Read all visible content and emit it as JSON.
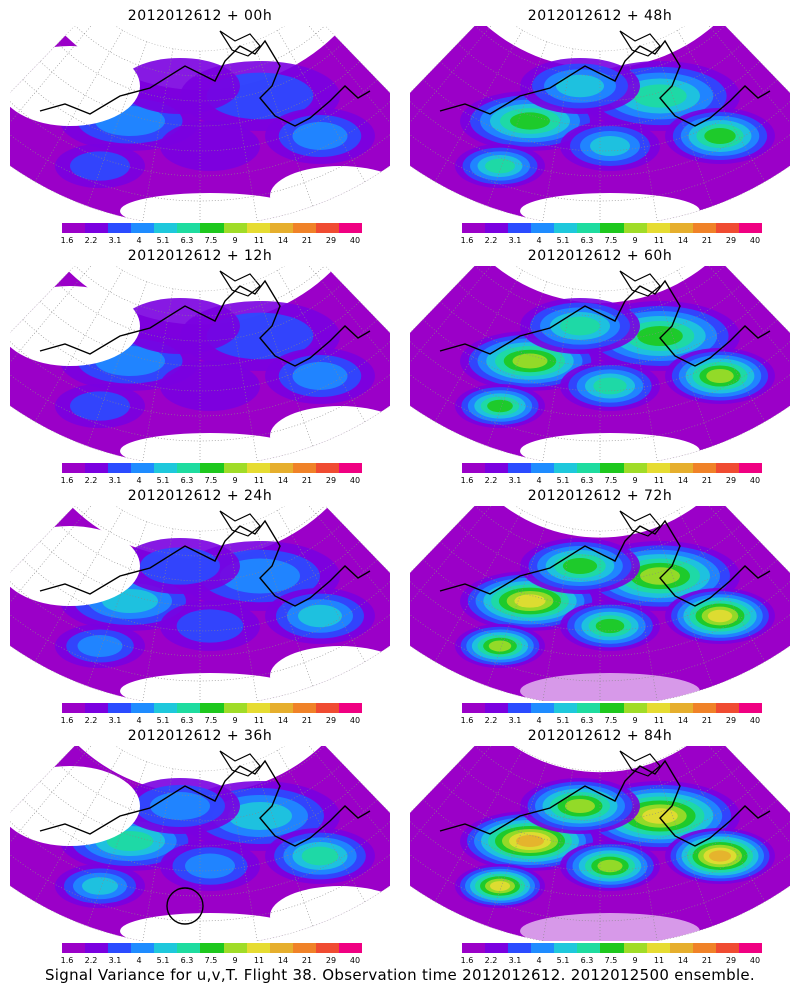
{
  "panels": [
    {
      "title": "2012012612 + 00h",
      "col": 0,
      "row": 0,
      "level": 0
    },
    {
      "title": "2012012612 + 48h",
      "col": 1,
      "row": 0,
      "level": 4
    },
    {
      "title": "2012012612 + 12h",
      "col": 0,
      "row": 1,
      "level": 1
    },
    {
      "title": "2012012612 + 60h",
      "col": 1,
      "row": 1,
      "level": 5
    },
    {
      "title": "2012012612 + 24h",
      "col": 0,
      "row": 2,
      "level": 2
    },
    {
      "title": "2012012612 + 72h",
      "col": 1,
      "row": 2,
      "level": 6
    },
    {
      "title": "2012012612 + 36h",
      "col": 0,
      "row": 3,
      "level": 3,
      "marker": true
    },
    {
      "title": "2012012612 + 84h",
      "col": 1,
      "row": 3,
      "level": 7
    }
  ],
  "colorbar": {
    "labels": [
      "1.6",
      "2.2",
      "3.1",
      "4",
      "5.1",
      "6.3",
      "7.5",
      "9",
      "11",
      "14",
      "21",
      "29",
      "40"
    ],
    "colors": [
      "#9b00c8",
      "#7a00e0",
      "#2a4bff",
      "#1e8cff",
      "#1ec8dc",
      "#1edca0",
      "#1ec81e",
      "#a0dc28",
      "#e6dc32",
      "#e6af2d",
      "#f08228",
      "#f04b32",
      "#f00082"
    ]
  },
  "footer": "Signal Variance for u,v,T. Flight 38. Observation time 2012012612. 2012012500 ensemble."
}
